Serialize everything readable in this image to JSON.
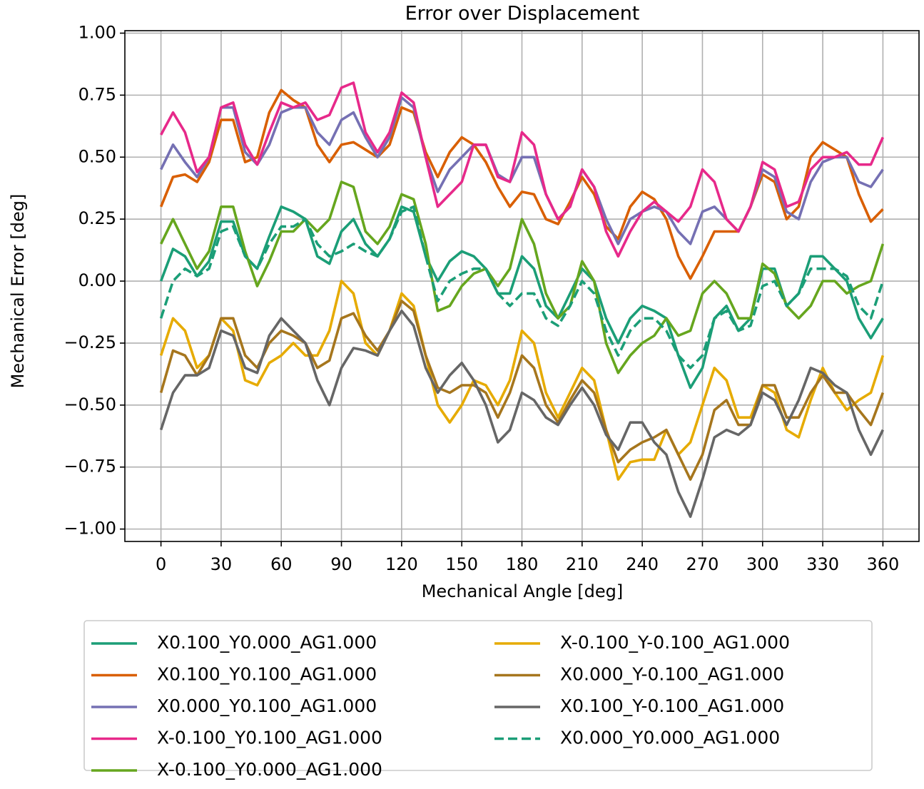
{
  "chart_data": {
    "type": "line",
    "title": "Error over Displacement",
    "x_label": "Mechanical Angle [deg]",
    "y_label": "Mechanical Error [deg]",
    "xlim": [
      -18,
      378
    ],
    "ylim": [
      -1.05,
      1.01
    ],
    "xticks": [
      0,
      30,
      60,
      90,
      120,
      150,
      180,
      210,
      240,
      270,
      300,
      330,
      360
    ],
    "yticks": [
      {
        "value": 1,
        "label": "1.00"
      },
      {
        "value": 0.75,
        "label": "0.75"
      },
      {
        "value": 0.5,
        "label": "0.50"
      },
      {
        "value": 0.25,
        "label": "0.25"
      },
      {
        "value": 0,
        "label": "0.00"
      },
      {
        "value": -0.25,
        "label": "−0.25"
      },
      {
        "value": -0.5,
        "label": "−0.50"
      },
      {
        "value": -0.75,
        "label": "−0.75"
      },
      {
        "value": -1,
        "label": "−1.00"
      }
    ],
    "grid": true,
    "legend_position": "below",
    "x": [
      0,
      6,
      12,
      18,
      24,
      30,
      36,
      42,
      48,
      54,
      60,
      66,
      72,
      78,
      84,
      90,
      96,
      102,
      108,
      114,
      120,
      126,
      132,
      138,
      144,
      150,
      156,
      162,
      168,
      174,
      180,
      186,
      192,
      198,
      204,
      210,
      216,
      222,
      228,
      234,
      240,
      246,
      252,
      258,
      264,
      270,
      276,
      282,
      288,
      294,
      300,
      306,
      312,
      318,
      324,
      330,
      336,
      342,
      348,
      354,
      360
    ],
    "series": [
      {
        "name": "X0.100_Y0.000_AG1.000",
        "color": "#1b9e77",
        "linestyle": "solid",
        "values": [
          0.0,
          0.13,
          0.1,
          0.02,
          0.08,
          0.24,
          0.24,
          0.1,
          0.05,
          0.18,
          0.3,
          0.28,
          0.25,
          0.1,
          0.07,
          0.2,
          0.25,
          0.15,
          0.1,
          0.17,
          0.3,
          0.28,
          0.1,
          0.0,
          0.08,
          0.12,
          0.1,
          0.05,
          -0.05,
          -0.05,
          0.1,
          0.05,
          -0.1,
          -0.15,
          -0.05,
          0.05,
          0.0,
          -0.15,
          -0.25,
          -0.15,
          -0.1,
          -0.12,
          -0.15,
          -0.3,
          -0.43,
          -0.35,
          -0.15,
          -0.1,
          -0.2,
          -0.15,
          0.05,
          0.05,
          -0.1,
          -0.05,
          0.1,
          0.1,
          0.05,
          0.0,
          -0.15,
          -0.23,
          -0.15
        ]
      },
      {
        "name": "X0.100_Y0.100_AG1.000",
        "color": "#d95f02",
        "linestyle": "solid",
        "values": [
          0.3,
          0.42,
          0.43,
          0.4,
          0.48,
          0.65,
          0.65,
          0.48,
          0.5,
          0.68,
          0.77,
          0.73,
          0.7,
          0.55,
          0.48,
          0.55,
          0.56,
          0.53,
          0.5,
          0.55,
          0.7,
          0.68,
          0.52,
          0.42,
          0.52,
          0.58,
          0.55,
          0.48,
          0.38,
          0.3,
          0.36,
          0.35,
          0.25,
          0.23,
          0.32,
          0.42,
          0.35,
          0.22,
          0.17,
          0.3,
          0.36,
          0.33,
          0.25,
          0.1,
          0.01,
          0.1,
          0.2,
          0.2,
          0.2,
          0.3,
          0.43,
          0.4,
          0.25,
          0.3,
          0.5,
          0.56,
          0.53,
          0.5,
          0.35,
          0.24,
          0.29
        ]
      },
      {
        "name": "X0.000_Y0.100_AG1.000",
        "color": "#7570b3",
        "linestyle": "solid",
        "values": [
          0.45,
          0.55,
          0.48,
          0.42,
          0.5,
          0.7,
          0.7,
          0.52,
          0.47,
          0.55,
          0.68,
          0.7,
          0.7,
          0.6,
          0.55,
          0.65,
          0.68,
          0.58,
          0.5,
          0.58,
          0.74,
          0.7,
          0.5,
          0.36,
          0.45,
          0.5,
          0.55,
          0.55,
          0.43,
          0.4,
          0.5,
          0.5,
          0.35,
          0.25,
          0.3,
          0.45,
          0.38,
          0.25,
          0.15,
          0.25,
          0.28,
          0.3,
          0.28,
          0.2,
          0.15,
          0.28,
          0.3,
          0.25,
          0.2,
          0.3,
          0.45,
          0.42,
          0.28,
          0.25,
          0.4,
          0.48,
          0.5,
          0.5,
          0.4,
          0.38,
          0.45
        ]
      },
      {
        "name": "X-0.100_Y0.100_AG1.000",
        "color": "#e7298a",
        "linestyle": "solid",
        "values": [
          0.59,
          0.68,
          0.6,
          0.44,
          0.5,
          0.7,
          0.72,
          0.55,
          0.47,
          0.6,
          0.72,
          0.7,
          0.72,
          0.65,
          0.67,
          0.78,
          0.8,
          0.6,
          0.52,
          0.6,
          0.76,
          0.72,
          0.5,
          0.3,
          0.35,
          0.4,
          0.55,
          0.55,
          0.42,
          0.4,
          0.6,
          0.55,
          0.35,
          0.25,
          0.3,
          0.45,
          0.38,
          0.2,
          0.1,
          0.2,
          0.28,
          0.32,
          0.28,
          0.24,
          0.3,
          0.45,
          0.4,
          0.25,
          0.2,
          0.3,
          0.48,
          0.45,
          0.3,
          0.32,
          0.45,
          0.5,
          0.5,
          0.52,
          0.47,
          0.47,
          0.58
        ]
      },
      {
        "name": "X-0.100_Y0.000_AG1.000",
        "color": "#66a61e",
        "linestyle": "solid",
        "values": [
          0.15,
          0.25,
          0.15,
          0.05,
          0.12,
          0.3,
          0.3,
          0.12,
          -0.02,
          0.08,
          0.2,
          0.2,
          0.25,
          0.2,
          0.25,
          0.4,
          0.38,
          0.2,
          0.15,
          0.22,
          0.35,
          0.33,
          0.15,
          -0.12,
          -0.1,
          -0.02,
          0.03,
          0.05,
          -0.02,
          0.05,
          0.25,
          0.15,
          -0.05,
          -0.15,
          -0.1,
          0.08,
          0.0,
          -0.25,
          -0.37,
          -0.3,
          -0.25,
          -0.22,
          -0.15,
          -0.22,
          -0.2,
          -0.05,
          0.0,
          -0.05,
          -0.15,
          -0.15,
          0.07,
          0.03,
          -0.1,
          -0.15,
          -0.1,
          0.0,
          0.0,
          -0.05,
          -0.02,
          0.0,
          0.15
        ]
      },
      {
        "name": "X-0.100_Y-0.100_AG1.000",
        "color": "#e6ab02",
        "linestyle": "solid",
        "values": [
          -0.3,
          -0.15,
          -0.2,
          -0.35,
          -0.3,
          -0.15,
          -0.2,
          -0.4,
          -0.42,
          -0.33,
          -0.3,
          -0.25,
          -0.3,
          -0.3,
          -0.2,
          0.0,
          -0.05,
          -0.25,
          -0.3,
          -0.2,
          -0.05,
          -0.1,
          -0.3,
          -0.5,
          -0.57,
          -0.5,
          -0.4,
          -0.42,
          -0.5,
          -0.4,
          -0.2,
          -0.25,
          -0.45,
          -0.55,
          -0.45,
          -0.35,
          -0.4,
          -0.6,
          -0.8,
          -0.73,
          -0.72,
          -0.72,
          -0.6,
          -0.7,
          -0.65,
          -0.5,
          -0.35,
          -0.4,
          -0.55,
          -0.55,
          -0.42,
          -0.45,
          -0.6,
          -0.63,
          -0.48,
          -0.35,
          -0.45,
          -0.52,
          -0.48,
          -0.45,
          -0.3
        ]
      },
      {
        "name": "X0.000_Y-0.100_AG1.000",
        "color": "#a6761d",
        "linestyle": "solid",
        "values": [
          -0.45,
          -0.28,
          -0.3,
          -0.38,
          -0.3,
          -0.15,
          -0.15,
          -0.3,
          -0.35,
          -0.25,
          -0.2,
          -0.22,
          -0.25,
          -0.35,
          -0.32,
          -0.15,
          -0.13,
          -0.22,
          -0.28,
          -0.2,
          -0.08,
          -0.12,
          -0.3,
          -0.43,
          -0.45,
          -0.42,
          -0.42,
          -0.45,
          -0.55,
          -0.45,
          -0.3,
          -0.35,
          -0.5,
          -0.57,
          -0.48,
          -0.4,
          -0.45,
          -0.6,
          -0.73,
          -0.68,
          -0.65,
          -0.63,
          -0.6,
          -0.7,
          -0.8,
          -0.7,
          -0.52,
          -0.48,
          -0.58,
          -0.58,
          -0.42,
          -0.42,
          -0.55,
          -0.55,
          -0.45,
          -0.38,
          -0.45,
          -0.45,
          -0.52,
          -0.58,
          -0.45
        ]
      },
      {
        "name": "X0.100_Y-0.100_AG1.000",
        "color": "#666666",
        "linestyle": "solid",
        "values": [
          -0.6,
          -0.45,
          -0.38,
          -0.38,
          -0.35,
          -0.2,
          -0.22,
          -0.35,
          -0.37,
          -0.22,
          -0.15,
          -0.2,
          -0.25,
          -0.4,
          -0.5,
          -0.35,
          -0.27,
          -0.28,
          -0.3,
          -0.2,
          -0.12,
          -0.18,
          -0.35,
          -0.45,
          -0.38,
          -0.33,
          -0.4,
          -0.5,
          -0.65,
          -0.6,
          -0.45,
          -0.48,
          -0.55,
          -0.58,
          -0.5,
          -0.43,
          -0.5,
          -0.62,
          -0.68,
          -0.57,
          -0.57,
          -0.65,
          -0.7,
          -0.85,
          -0.95,
          -0.8,
          -0.63,
          -0.6,
          -0.62,
          -0.58,
          -0.45,
          -0.48,
          -0.58,
          -0.48,
          -0.35,
          -0.37,
          -0.42,
          -0.45,
          -0.6,
          -0.7,
          -0.6
        ]
      },
      {
        "name": "X0.000_Y0.000_AG1.000",
        "color": "#1b9e77",
        "linestyle": "dashed",
        "values": [
          -0.15,
          0.0,
          0.05,
          0.02,
          0.05,
          0.2,
          0.22,
          0.1,
          0.05,
          0.15,
          0.22,
          0.22,
          0.25,
          0.15,
          0.1,
          0.12,
          0.15,
          0.12,
          0.1,
          0.17,
          0.28,
          0.3,
          0.1,
          -0.08,
          0.0,
          0.03,
          0.05,
          0.05,
          -0.05,
          -0.1,
          -0.05,
          -0.05,
          -0.15,
          -0.18,
          -0.1,
          0.0,
          -0.05,
          -0.2,
          -0.3,
          -0.2,
          -0.15,
          -0.15,
          -0.2,
          -0.3,
          -0.35,
          -0.3,
          -0.15,
          -0.12,
          -0.2,
          -0.18,
          -0.02,
          0.0,
          -0.1,
          -0.05,
          0.05,
          0.05,
          0.05,
          0.02,
          -0.1,
          -0.15,
          0.0
        ]
      }
    ]
  }
}
